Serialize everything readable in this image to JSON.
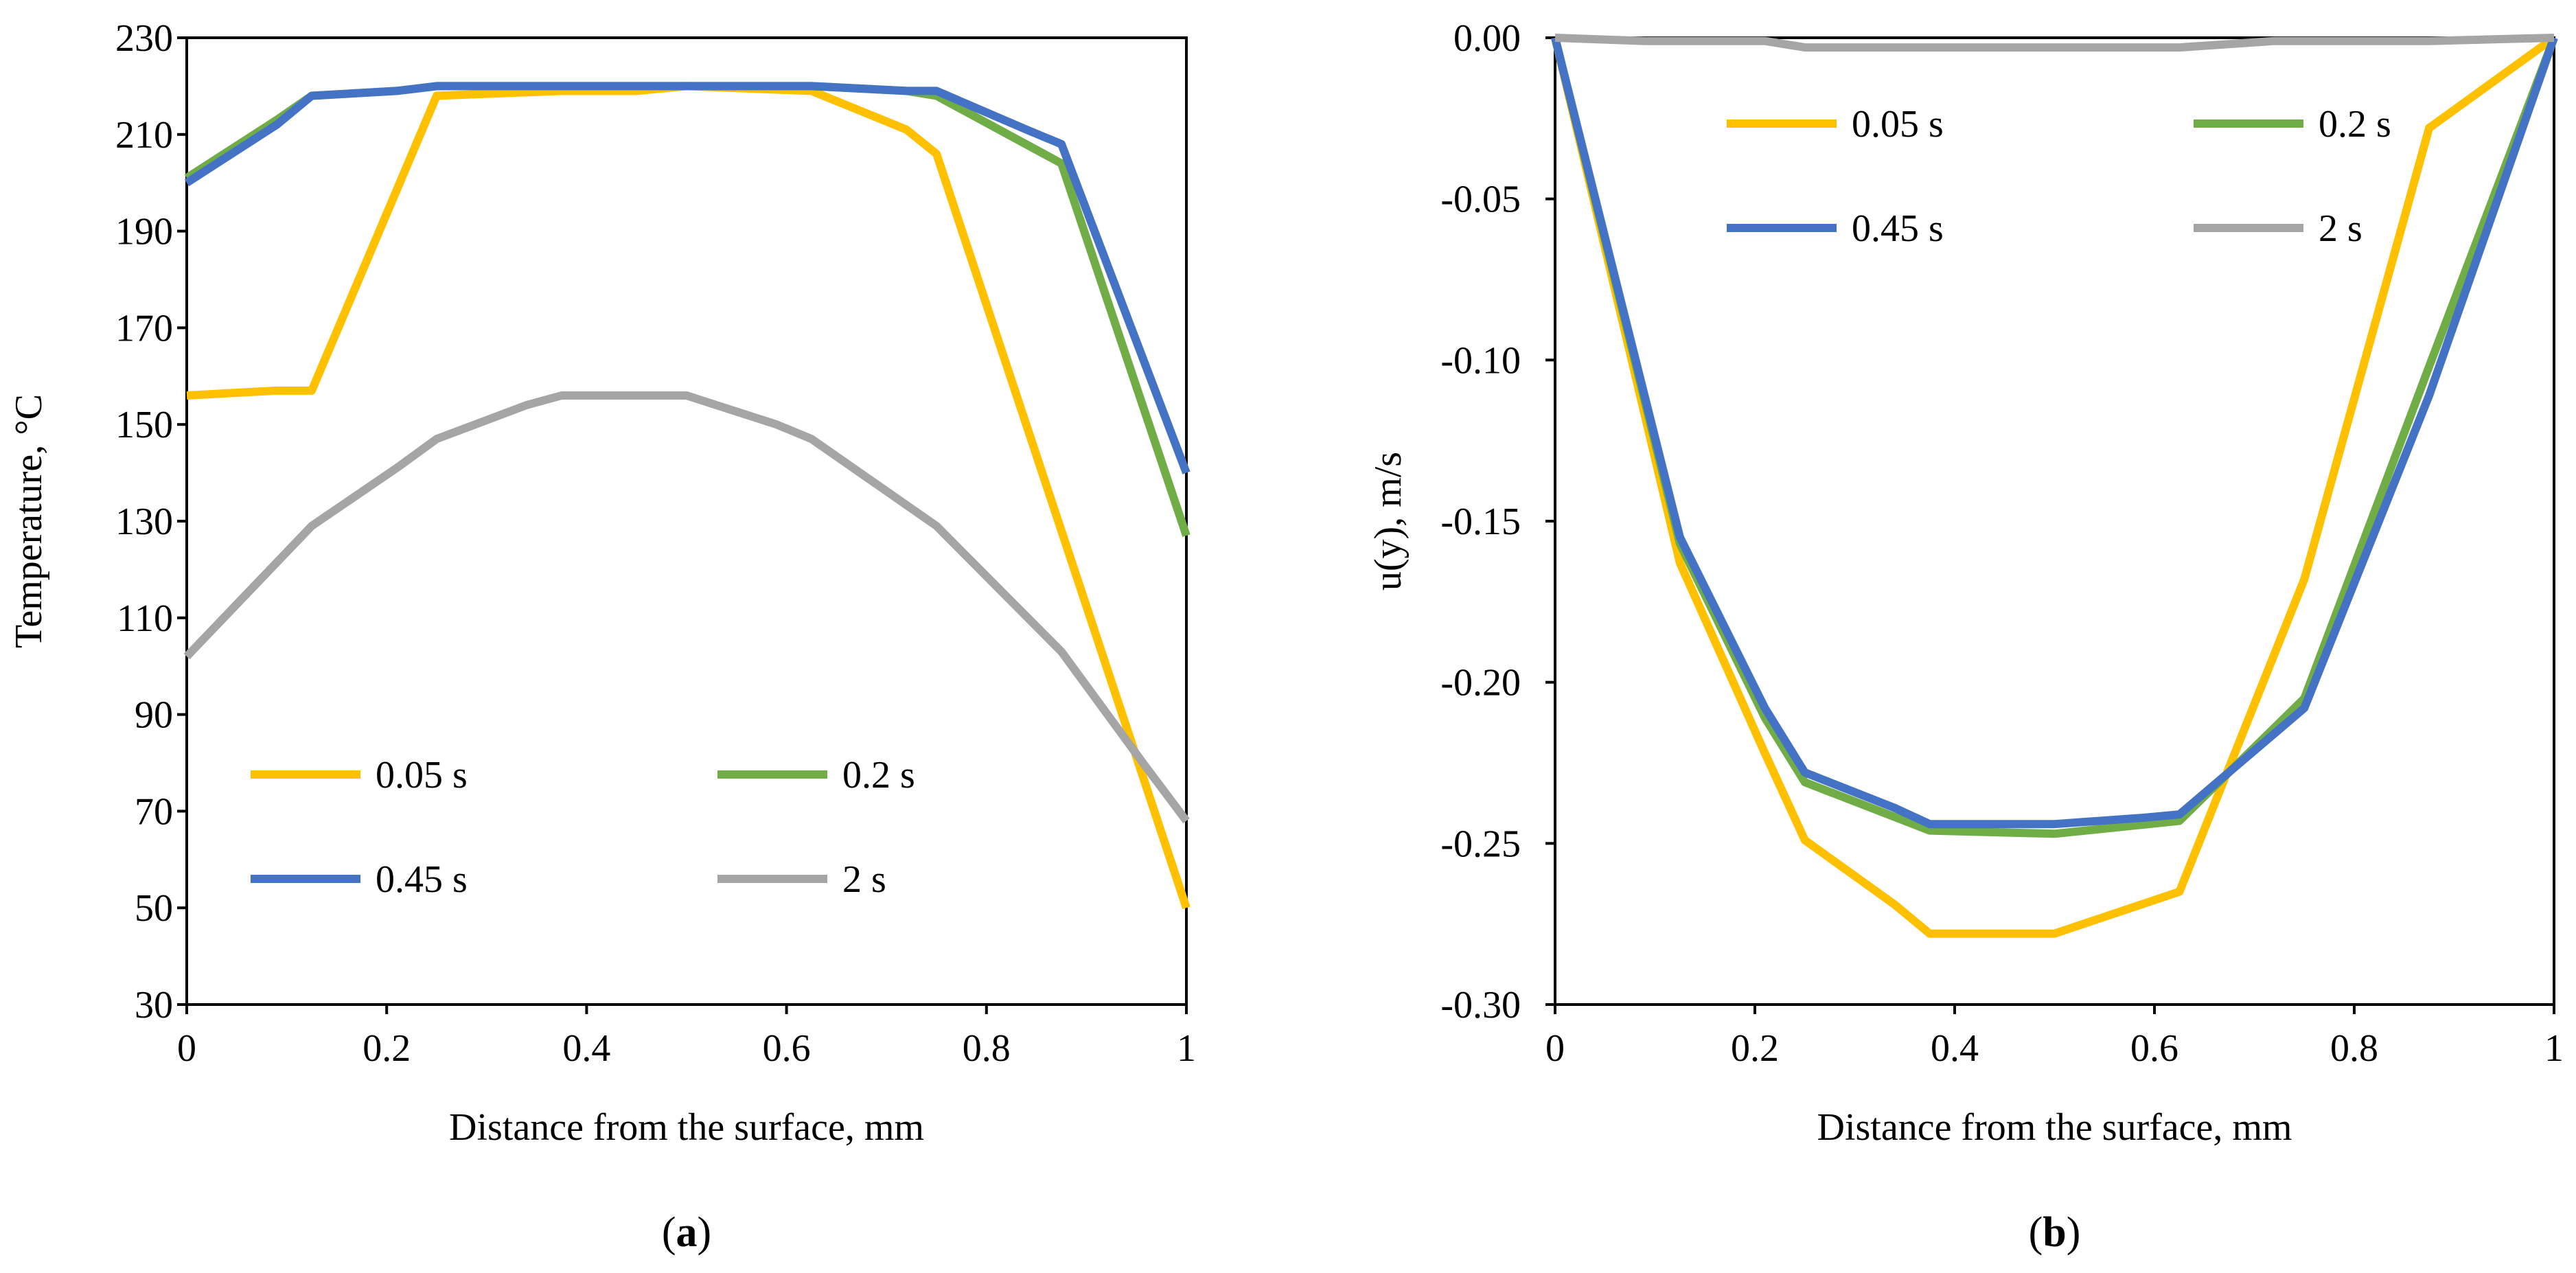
{
  "chart_data": [
    {
      "type": "line",
      "panel": "a",
      "caption": {
        "open": "(",
        "letter": "a",
        "close": ")"
      },
      "xlabel": "Distance from the surface, mm",
      "ylabel": "Temperature, °C",
      "xlim": [
        0,
        1
      ],
      "ylim": [
        30,
        230
      ],
      "xticks": [
        0,
        0.2,
        0.4,
        0.6,
        0.8,
        1
      ],
      "xtick_labels": [
        "0",
        "0.2",
        "0.4",
        "0.6",
        "0.8",
        "1"
      ],
      "yticks": [
        30,
        50,
        70,
        90,
        110,
        130,
        150,
        170,
        190,
        210,
        230
      ],
      "ytick_labels": [
        "30",
        "50",
        "70",
        "90",
        "110",
        "130",
        "150",
        "170",
        "190",
        "210",
        "230"
      ],
      "grid": false,
      "legend_placement": "bottom-left",
      "series": [
        {
          "name": "0.05 s",
          "color": "#FFC000",
          "x": [
            0,
            0.09,
            0.125,
            0.25,
            0.375,
            0.45,
            0.5,
            0.625,
            0.72,
            0.75,
            0.875,
            1
          ],
          "y": [
            156,
            157,
            157,
            218,
            219,
            219,
            220,
            219,
            211,
            206,
            128,
            50
          ]
        },
        {
          "name": "0.2 s",
          "color": "#70AD47",
          "x": [
            0,
            0.09,
            0.125,
            0.21,
            0.25,
            0.375,
            0.5,
            0.625,
            0.72,
            0.75,
            0.875,
            1
          ],
          "y": [
            201,
            213,
            218,
            219,
            220,
            220,
            220,
            220,
            219,
            218,
            204,
            127
          ]
        },
        {
          "name": "0.45 s",
          "color": "#4472C4",
          "x": [
            0,
            0.09,
            0.125,
            0.21,
            0.25,
            0.375,
            0.5,
            0.625,
            0.72,
            0.75,
            0.84,
            0.875,
            1
          ],
          "y": [
            200,
            212,
            218,
            219,
            220,
            220,
            220,
            220,
            219,
            219,
            211,
            208,
            140
          ]
        },
        {
          "name": "2 s",
          "color": "#A5A5A5",
          "x": [
            0,
            0.125,
            0.21,
            0.25,
            0.34,
            0.375,
            0.5,
            0.59,
            0.625,
            0.75,
            0.875,
            0.96,
            1
          ],
          "y": [
            102,
            129,
            141,
            147,
            154,
            156,
            156,
            150,
            147,
            129,
            103,
            79,
            68
          ]
        }
      ]
    },
    {
      "type": "line",
      "panel": "b",
      "caption": {
        "open": "(",
        "letter": "b",
        "close": ")"
      },
      "xlabel": "Distance from the surface, mm",
      "ylabel": "u(y), m/s",
      "xlim": [
        0,
        1
      ],
      "ylim": [
        -0.3,
        0
      ],
      "xticks": [
        0,
        0.2,
        0.4,
        0.6,
        0.8,
        1
      ],
      "xtick_labels": [
        "0",
        "0.2",
        "0.4",
        "0.6",
        "0.8",
        "1"
      ],
      "yticks": [
        0,
        -0.05,
        -0.1,
        -0.15,
        -0.2,
        -0.25,
        -0.3
      ],
      "ytick_labels": [
        "0.00",
        "-0.05",
        "-0.10",
        "-0.15",
        "-0.20",
        "-0.25",
        "-0.30"
      ],
      "grid": false,
      "legend_placement": "top",
      "series": [
        {
          "name": "0.05 s",
          "color": "#FFC000",
          "x": [
            0,
            0.125,
            0.21,
            0.25,
            0.34,
            0.375,
            0.5,
            0.625,
            0.75,
            0.875,
            1
          ],
          "y": [
            0,
            -0.163,
            -0.222,
            -0.249,
            -0.269,
            -0.278,
            -0.278,
            -0.265,
            -0.168,
            -0.028,
            0
          ]
        },
        {
          "name": "0.2 s",
          "color": "#70AD47",
          "x": [
            0,
            0.125,
            0.21,
            0.25,
            0.375,
            0.5,
            0.625,
            0.75,
            0.875,
            1
          ],
          "y": [
            0,
            -0.157,
            -0.211,
            -0.231,
            -0.246,
            -0.247,
            -0.243,
            -0.205,
            -0.102,
            0
          ]
        },
        {
          "name": "0.45 s",
          "color": "#4472C4",
          "x": [
            0,
            0.125,
            0.21,
            0.25,
            0.34,
            0.375,
            0.5,
            0.59,
            0.625,
            0.75,
            0.875,
            1
          ],
          "y": [
            0,
            -0.155,
            -0.208,
            -0.228,
            -0.239,
            -0.244,
            -0.244,
            -0.242,
            -0.241,
            -0.208,
            -0.111,
            0
          ]
        },
        {
          "name": "2 s",
          "color": "#A5A5A5",
          "x": [
            0,
            0.09,
            0.21,
            0.25,
            0.375,
            0.5,
            0.625,
            0.72,
            0.875,
            1
          ],
          "y": [
            0,
            -0.001,
            -0.001,
            -0.003,
            -0.003,
            -0.003,
            -0.003,
            -0.001,
            -0.001,
            0
          ]
        }
      ]
    }
  ]
}
